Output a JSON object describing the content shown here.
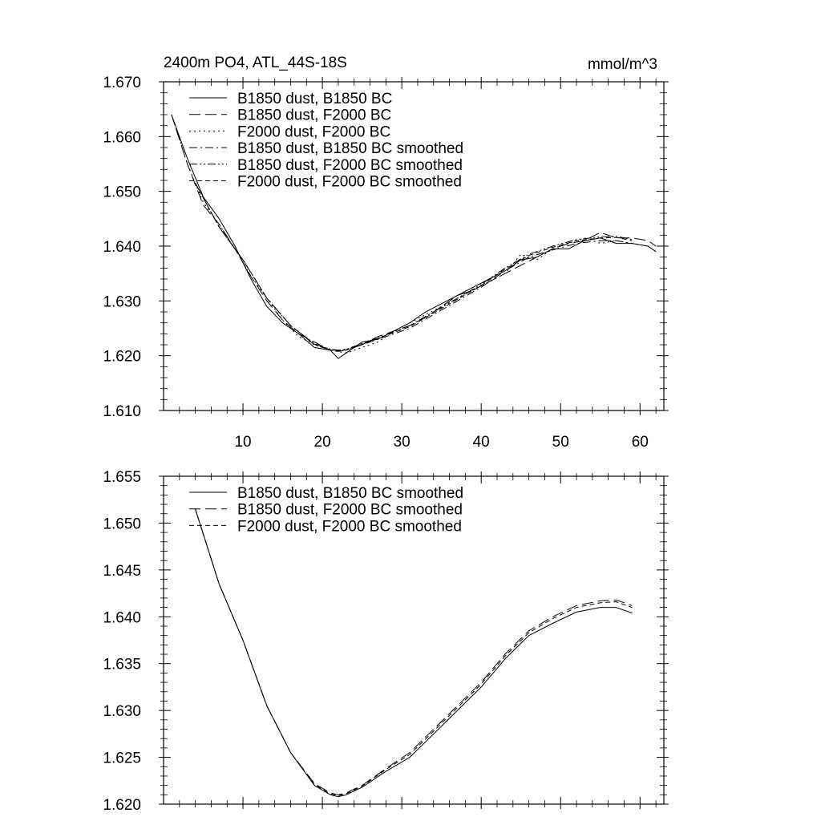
{
  "chart_data": [
    {
      "type": "line",
      "title": "2400m PO4, ATL_44S-18S",
      "units": "mmol/m^3",
      "xlabel": "",
      "ylabel": "",
      "xlim": [
        0,
        63
      ],
      "ylim": [
        1.61,
        1.67
      ],
      "xticks": [
        10,
        20,
        30,
        40,
        50,
        60
      ],
      "xtick_labels": [
        "10",
        "20",
        "30",
        "40",
        "50",
        "60"
      ],
      "yticks": [
        1.61,
        1.62,
        1.63,
        1.64,
        1.65,
        1.66,
        1.67
      ],
      "ytick_labels": [
        "1.610",
        "1.620",
        "1.630",
        "1.640",
        "1.650",
        "1.660",
        "1.670"
      ],
      "legend_position": "top-left",
      "series": [
        {
          "name": "B1850 dust, B1850 BC",
          "dash": "solid",
          "x": [
            1,
            3,
            5,
            7,
            9,
            11,
            13,
            15,
            17,
            19,
            21,
            22,
            23,
            25,
            27,
            29,
            31,
            33,
            35,
            37,
            39,
            41,
            43,
            45,
            47,
            49,
            51,
            53,
            55,
            57,
            59,
            61,
            62
          ],
          "y": [
            1.664,
            1.656,
            1.649,
            1.645,
            1.64,
            1.634,
            1.629,
            1.626,
            1.624,
            1.6215,
            1.621,
            1.6195,
            1.6205,
            1.6225,
            1.623,
            1.6245,
            1.626,
            1.628,
            1.6295,
            1.631,
            1.6325,
            1.634,
            1.6355,
            1.6375,
            1.638,
            1.6395,
            1.6395,
            1.641,
            1.6415,
            1.6405,
            1.6405,
            1.64,
            1.639
          ]
        },
        {
          "name": "B1850 dust, F2000 BC",
          "dash": "long-dash",
          "x": [
            1,
            3,
            5,
            7,
            9,
            11,
            13,
            15,
            17,
            19,
            21,
            23,
            25,
            27,
            29,
            31,
            33,
            35,
            37,
            39,
            41,
            43,
            45,
            47,
            49,
            51,
            53,
            55,
            57,
            59,
            61,
            62
          ],
          "y": [
            1.664,
            1.655,
            1.6475,
            1.644,
            1.6395,
            1.6345,
            1.63,
            1.6265,
            1.624,
            1.6225,
            1.621,
            1.621,
            1.622,
            1.6235,
            1.6245,
            1.6255,
            1.627,
            1.629,
            1.631,
            1.632,
            1.6335,
            1.635,
            1.6365,
            1.638,
            1.6395,
            1.6405,
            1.641,
            1.6425,
            1.6415,
            1.6415,
            1.641,
            1.64
          ]
        },
        {
          "name": "F2000 dust, F2000 BC",
          "dash": "dot",
          "x": [
            1,
            3,
            5,
            7,
            9,
            11,
            13,
            15,
            17,
            19,
            21,
            23,
            25,
            27,
            29,
            31,
            33,
            35,
            37,
            39,
            41,
            43,
            45,
            47,
            49,
            51,
            53,
            55,
            57,
            59,
            61,
            62
          ],
          "y": [
            1.664,
            1.655,
            1.648,
            1.644,
            1.6395,
            1.6345,
            1.6305,
            1.6265,
            1.6235,
            1.622,
            1.621,
            1.6205,
            1.6215,
            1.6225,
            1.6245,
            1.626,
            1.6275,
            1.629,
            1.6305,
            1.632,
            1.6335,
            1.635,
            1.6385,
            1.6375,
            1.6395,
            1.6405,
            1.6415,
            1.6405,
            1.641,
            1.6405,
            1.64,
            1.639
          ]
        },
        {
          "name": "B1850 dust, B1850 BC smoothed",
          "dash": "dash-dot",
          "x": [
            4,
            7,
            10,
            13,
            16,
            19,
            21,
            22,
            23,
            25,
            28,
            31,
            34,
            37,
            40,
            43,
            46,
            49,
            52,
            55,
            57,
            59
          ],
          "y": [
            1.6515,
            1.6435,
            1.6375,
            1.6305,
            1.6255,
            1.622,
            1.621,
            1.6208,
            1.621,
            1.622,
            1.6235,
            1.625,
            1.6275,
            1.63,
            1.6325,
            1.6355,
            1.638,
            1.6393,
            1.6405,
            1.641,
            1.641,
            1.6405
          ]
        },
        {
          "name": "B1850 dust, F2000 BC smoothed",
          "dash": "dash-dot-dot",
          "x": [
            4,
            7,
            10,
            13,
            16,
            19,
            21,
            22,
            23,
            25,
            28,
            31,
            34,
            37,
            40,
            43,
            46,
            49,
            52,
            55,
            57,
            59
          ],
          "y": [
            1.6515,
            1.6435,
            1.6375,
            1.6305,
            1.6255,
            1.6222,
            1.6212,
            1.621,
            1.6212,
            1.6222,
            1.6238,
            1.6255,
            1.628,
            1.6305,
            1.633,
            1.636,
            1.6385,
            1.64,
            1.6412,
            1.6417,
            1.6418,
            1.6412
          ]
        },
        {
          "name": "F2000 dust, F2000 BC smoothed",
          "dash": "short-dash",
          "x": [
            4,
            7,
            10,
            13,
            16,
            19,
            21,
            22,
            23,
            25,
            28,
            31,
            34,
            37,
            40,
            43,
            46,
            49,
            52,
            55,
            57,
            59
          ],
          "y": [
            1.6515,
            1.6435,
            1.6375,
            1.6305,
            1.6255,
            1.6221,
            1.6211,
            1.6209,
            1.6211,
            1.6221,
            1.6237,
            1.6253,
            1.6278,
            1.6303,
            1.6328,
            1.6358,
            1.6383,
            1.6398,
            1.641,
            1.6415,
            1.6416,
            1.641
          ]
        }
      ]
    },
    {
      "type": "line",
      "title": "",
      "xlabel": "",
      "ylabel": "",
      "xlim": [
        0,
        63
      ],
      "ylim": [
        1.62,
        1.655
      ],
      "xticks": [
        10,
        20,
        30,
        40,
        50,
        60
      ],
      "yticks": [
        1.62,
        1.625,
        1.63,
        1.635,
        1.64,
        1.645,
        1.65,
        1.655
      ],
      "ytick_labels": [
        "1.620",
        "1.625",
        "1.630",
        "1.635",
        "1.640",
        "1.645",
        "1.650",
        "1.655"
      ],
      "legend_position": "top-left",
      "series": [
        {
          "name": "B1850 dust, B1850 BC smoothed",
          "dash": "solid",
          "x": [
            4,
            7,
            10,
            13,
            16,
            19,
            21,
            22,
            23,
            25,
            28,
            31,
            34,
            37,
            40,
            43,
            46,
            49,
            52,
            55,
            57,
            59
          ],
          "y": [
            1.6515,
            1.6435,
            1.6375,
            1.6305,
            1.6255,
            1.622,
            1.621,
            1.6208,
            1.621,
            1.6218,
            1.6235,
            1.625,
            1.6275,
            1.63,
            1.6325,
            1.6355,
            1.638,
            1.6393,
            1.6405,
            1.641,
            1.641,
            1.6404
          ]
        },
        {
          "name": "B1850 dust, F2000 BC smoothed",
          "dash": "long-dash",
          "x": [
            4,
            7,
            10,
            13,
            16,
            19,
            21,
            22,
            23,
            25,
            28,
            31,
            34,
            37,
            40,
            43,
            46,
            49,
            52,
            55,
            57,
            59
          ],
          "y": [
            1.6515,
            1.6435,
            1.6375,
            1.6305,
            1.6255,
            1.6222,
            1.6212,
            1.621,
            1.6212,
            1.622,
            1.6238,
            1.6255,
            1.628,
            1.6305,
            1.633,
            1.636,
            1.6385,
            1.64,
            1.6412,
            1.6417,
            1.6418,
            1.6412
          ]
        },
        {
          "name": "F2000 dust, F2000 BC smoothed",
          "dash": "short-dash",
          "x": [
            4,
            7,
            10,
            13,
            16,
            19,
            21,
            22,
            23,
            25,
            28,
            31,
            34,
            37,
            40,
            43,
            46,
            49,
            52,
            55,
            57,
            59
          ],
          "y": [
            1.6515,
            1.6435,
            1.6375,
            1.6305,
            1.6255,
            1.6221,
            1.6211,
            1.6209,
            1.6211,
            1.6219,
            1.6237,
            1.6253,
            1.6278,
            1.6303,
            1.6328,
            1.6358,
            1.6383,
            1.6398,
            1.641,
            1.6415,
            1.6416,
            1.641
          ]
        }
      ]
    }
  ]
}
